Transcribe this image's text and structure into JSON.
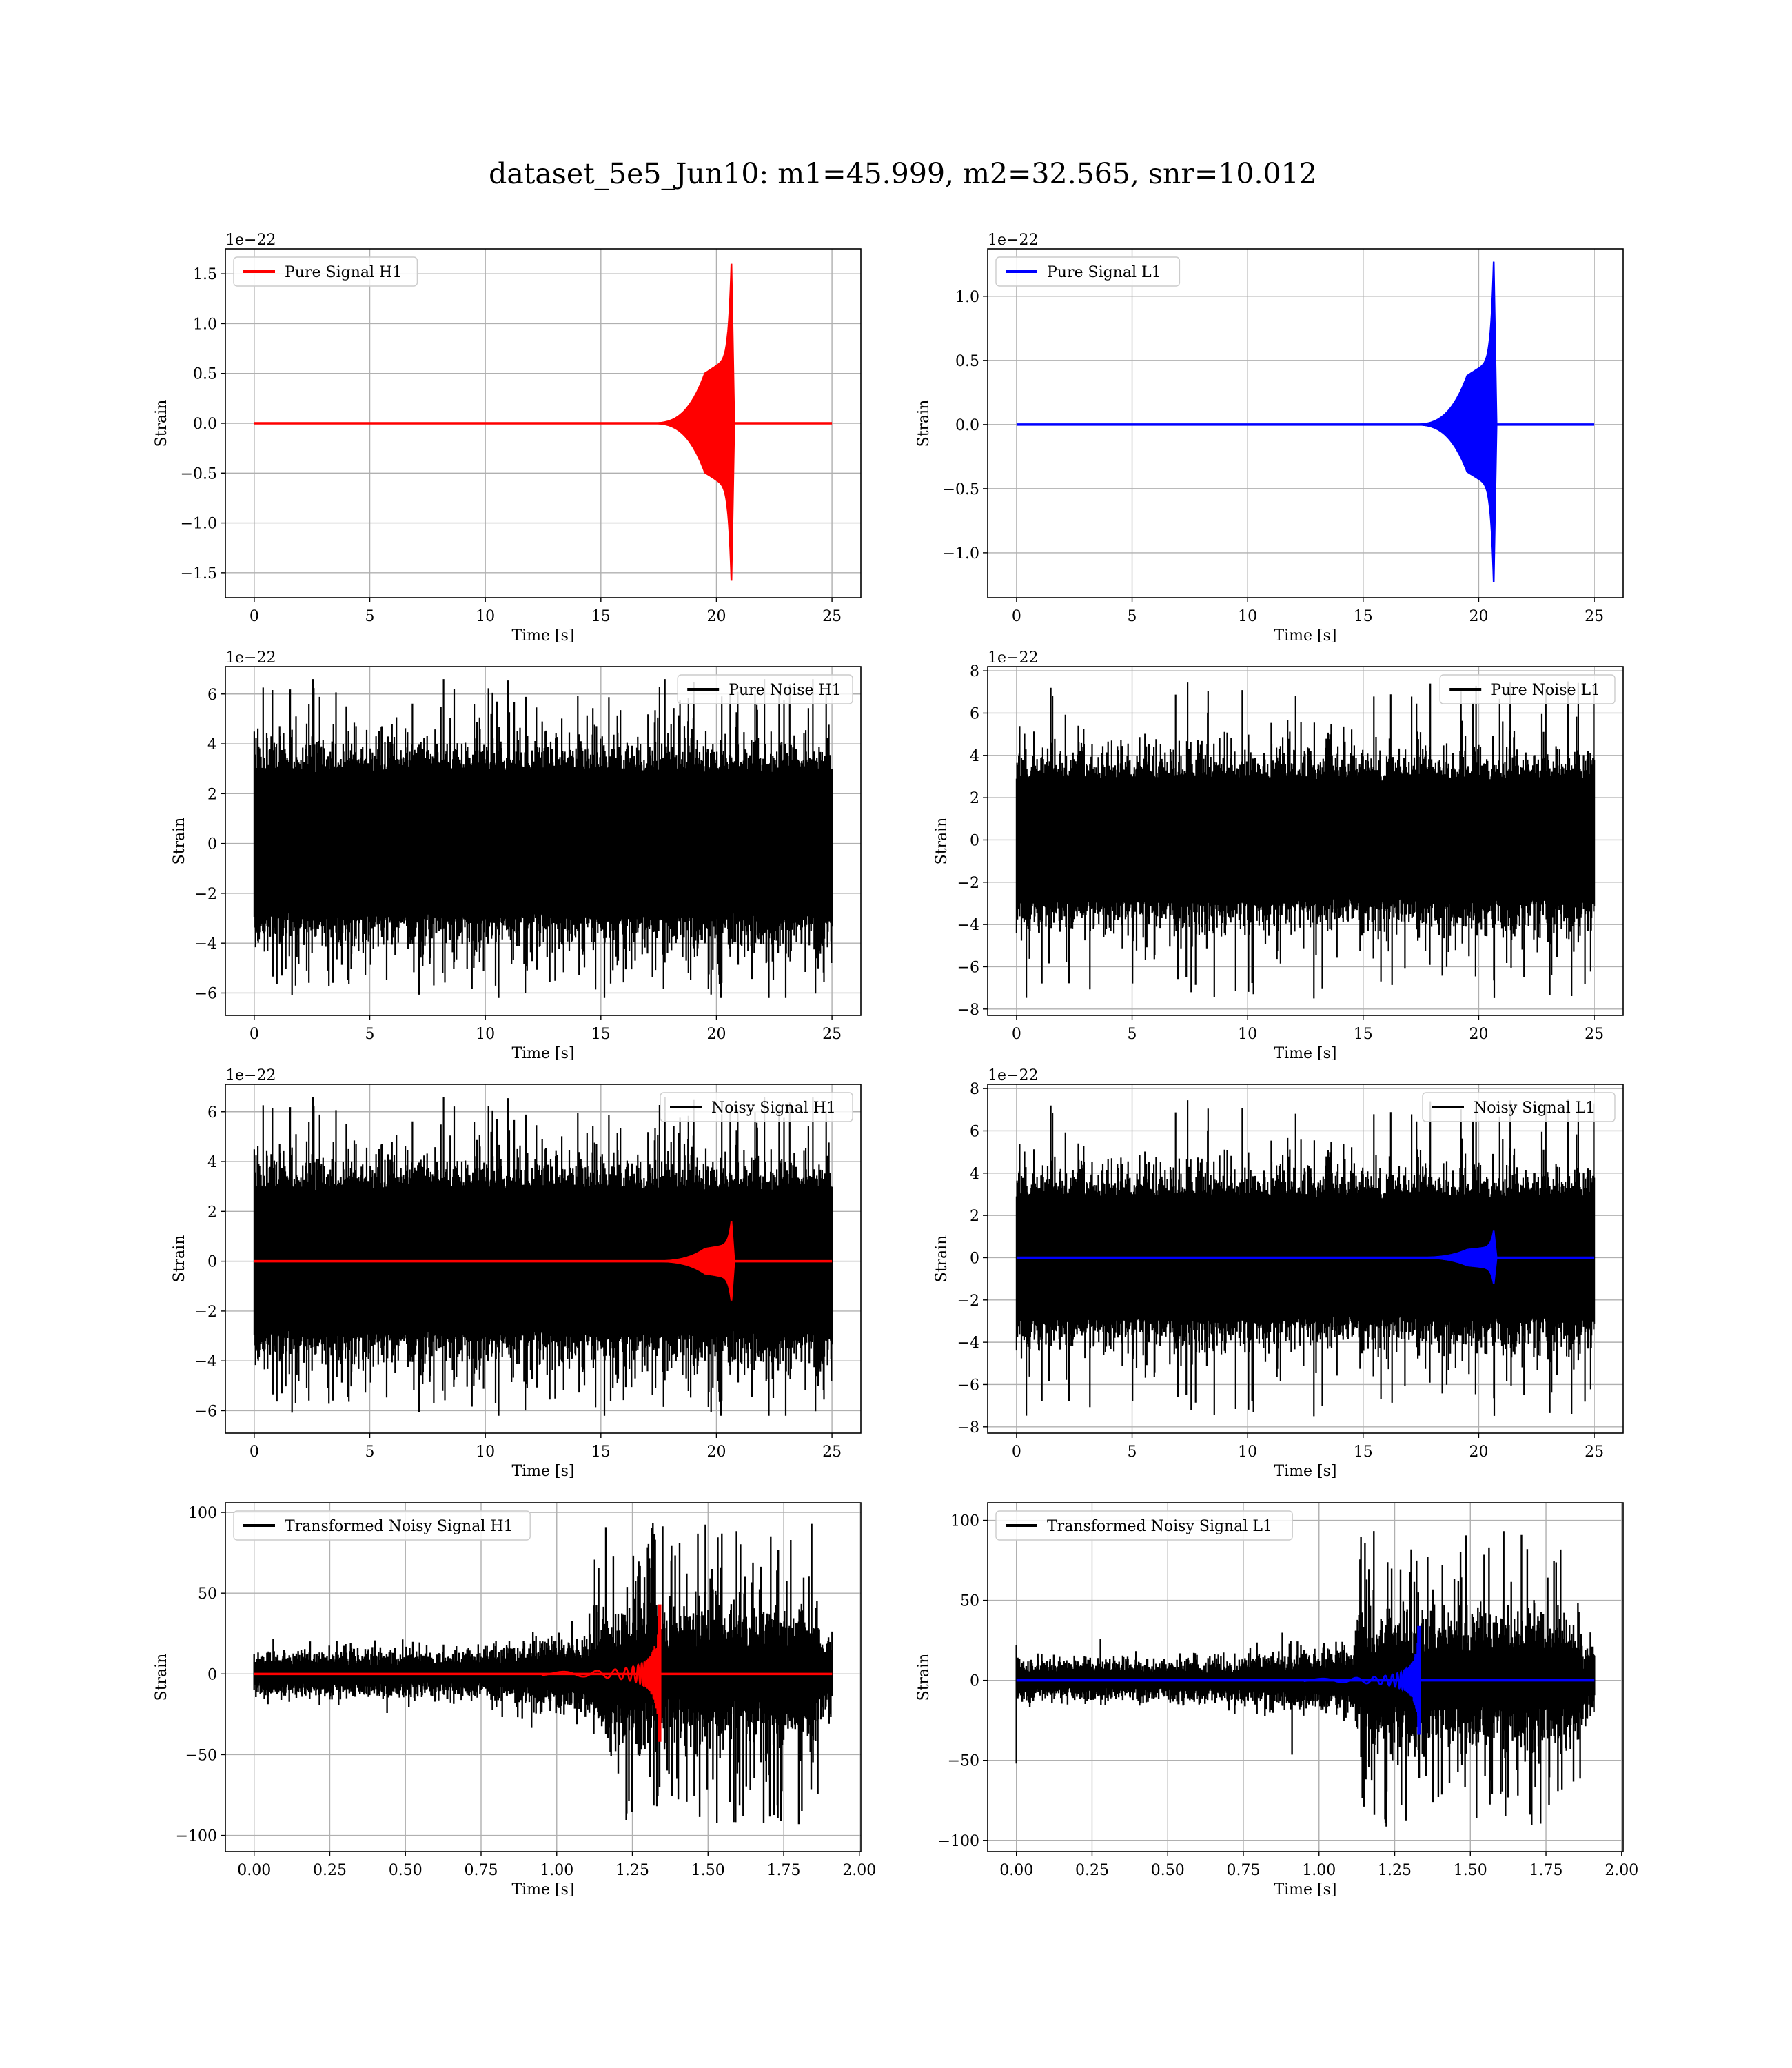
{
  "figure": {
    "title": "dataset_5e5_Jun10: m1=45.999, m2=32.565, snr=10.012"
  },
  "chart_data": [
    {
      "id": "ps-h1",
      "type": "line",
      "kind": "signal",
      "seed": 11,
      "legend": {
        "label": "Pure Signal H1",
        "position": "upper-left"
      },
      "xlabel": "Time [s]",
      "ylabel": "Strain",
      "offset_text": "1e−22",
      "xlim": [
        -1.25,
        26.25
      ],
      "ylim": [
        -1.75,
        1.75
      ],
      "xticks": [
        0,
        5,
        10,
        15,
        20,
        25
      ],
      "yticks": [
        -1.5,
        -1.0,
        -0.5,
        0.0,
        0.5,
        1.0,
        1.5
      ],
      "xtick_labels": [
        "0",
        "5",
        "10",
        "15",
        "20",
        "25"
      ],
      "ytick_labels": [
        "−1.5",
        "−1.0",
        "−0.5",
        "0.0",
        "0.5",
        "1.0",
        "1.5"
      ],
      "signal": {
        "color": "#ff0000",
        "x_range": [
          0,
          25
        ],
        "merger_time": 20.65,
        "peak": 1.6,
        "trough": -1.58,
        "plateau_start": 19.5,
        "plateau_amp": 0.5
      }
    },
    {
      "id": "ps-l1",
      "type": "line",
      "kind": "signal",
      "seed": 12,
      "legend": {
        "label": "Pure Signal L1",
        "position": "upper-left"
      },
      "xlabel": "Time [s]",
      "ylabel": "Strain",
      "offset_text": "1e−22",
      "xlim": [
        -1.25,
        26.25
      ],
      "ylim": [
        -1.35,
        1.37
      ],
      "xticks": [
        0,
        5,
        10,
        15,
        20,
        25
      ],
      "yticks": [
        -1.0,
        -0.5,
        0.0,
        0.5,
        1.0
      ],
      "xtick_labels": [
        "0",
        "5",
        "10",
        "15",
        "20",
        "25"
      ],
      "ytick_labels": [
        "−1.0",
        "−0.5",
        "0.0",
        "0.5",
        "1.0"
      ],
      "signal": {
        "color": "#0000ff",
        "x_range": [
          0,
          25
        ],
        "merger_time": 20.65,
        "peak": 1.27,
        "trough": -1.23,
        "plateau_start": 19.5,
        "plateau_amp": 0.38
      }
    },
    {
      "id": "pn-h1",
      "type": "line",
      "kind": "noise",
      "seed": 21,
      "legend": {
        "label": "Pure Noise H1",
        "position": "upper-right"
      },
      "xlabel": "Time [s]",
      "ylabel": "Strain",
      "offset_text": "1e−22",
      "xlim": [
        -1.25,
        26.25
      ],
      "ylim": [
        -6.9,
        7.1
      ],
      "xticks": [
        0,
        5,
        10,
        15,
        20,
        25
      ],
      "yticks": [
        -6,
        -4,
        -2,
        0,
        2,
        4,
        6
      ],
      "xtick_labels": [
        "0",
        "5",
        "10",
        "15",
        "20",
        "25"
      ],
      "ytick_labels": [
        "−6",
        "−4",
        "−2",
        "0",
        "2",
        "4",
        "6"
      ],
      "noise": {
        "color": "#000000",
        "x_range": [
          0,
          25
        ],
        "core": 2.9,
        "max": 6.6,
        "min": -6.2
      }
    },
    {
      "id": "pn-l1",
      "type": "line",
      "kind": "noise",
      "seed": 22,
      "legend": {
        "label": "Pure Noise L1",
        "position": "upper-right"
      },
      "xlabel": "Time [s]",
      "ylabel": "Strain",
      "offset_text": "1e−22",
      "xlim": [
        -1.25,
        26.25
      ],
      "ylim": [
        -8.3,
        8.2
      ],
      "xticks": [
        0,
        5,
        10,
        15,
        20,
        25
      ],
      "yticks": [
        -8,
        -6,
        -4,
        -2,
        0,
        2,
        4,
        6,
        8
      ],
      "xtick_labels": [
        "0",
        "5",
        "10",
        "15",
        "20",
        "25"
      ],
      "ytick_labels": [
        "−8",
        "−6",
        "−4",
        "−2",
        "0",
        "2",
        "4",
        "6",
        "8"
      ],
      "noise": {
        "color": "#000000",
        "x_range": [
          0,
          25
        ],
        "core": 2.9,
        "max": 7.5,
        "min": -7.5
      }
    },
    {
      "id": "ns-h1",
      "type": "line",
      "kind": "noise+signal",
      "seed": 21,
      "legend": {
        "label": "Noisy Signal H1",
        "position": "upper-right"
      },
      "xlabel": "Time [s]",
      "ylabel": "Strain",
      "offset_text": "1e−22",
      "xlim": [
        -1.25,
        26.25
      ],
      "ylim": [
        -6.9,
        7.1
      ],
      "xticks": [
        0,
        5,
        10,
        15,
        20,
        25
      ],
      "yticks": [
        -6,
        -4,
        -2,
        0,
        2,
        4,
        6
      ],
      "xtick_labels": [
        "0",
        "5",
        "10",
        "15",
        "20",
        "25"
      ],
      "ytick_labels": [
        "−6",
        "−4",
        "−2",
        "0",
        "2",
        "4",
        "6"
      ],
      "noise": {
        "color": "#000000",
        "x_range": [
          0,
          25
        ],
        "core": 2.9,
        "max": 6.6,
        "min": -6.2
      },
      "signal": {
        "color": "#ff0000",
        "x_range": [
          0,
          25
        ],
        "merger_time": 20.65,
        "peak": 1.6,
        "trough": -1.58,
        "plateau_start": 19.5,
        "plateau_amp": 0.5
      }
    },
    {
      "id": "ns-l1",
      "type": "line",
      "kind": "noise+signal",
      "seed": 22,
      "legend": {
        "label": "Noisy Signal L1",
        "position": "upper-right"
      },
      "xlabel": "Time [s]",
      "ylabel": "Strain",
      "offset_text": "1e−22",
      "xlim": [
        -1.25,
        26.25
      ],
      "ylim": [
        -8.3,
        8.2
      ],
      "xticks": [
        0,
        5,
        10,
        15,
        20,
        25
      ],
      "yticks": [
        -8,
        -6,
        -4,
        -2,
        0,
        2,
        4,
        6,
        8
      ],
      "xtick_labels": [
        "0",
        "5",
        "10",
        "15",
        "20",
        "25"
      ],
      "ytick_labels": [
        "−8",
        "−6",
        "−4",
        "−2",
        "0",
        "2",
        "4",
        "6",
        "8"
      ],
      "noise": {
        "color": "#000000",
        "x_range": [
          0,
          25
        ],
        "core": 2.9,
        "max": 7.5,
        "min": -7.5
      },
      "signal": {
        "color": "#0000ff",
        "x_range": [
          0,
          25
        ],
        "merger_time": 20.65,
        "peak": 1.27,
        "trough": -1.23,
        "plateau_start": 19.5,
        "plateau_amp": 0.38
      }
    },
    {
      "id": "tn-h1",
      "type": "line",
      "kind": "transformed",
      "seed": 31,
      "legend": {
        "label": "Transformed Noisy Signal H1",
        "position": "upper-left"
      },
      "xlabel": "Time [s]",
      "ylabel": "Strain",
      "offset_text": "",
      "xlim": [
        -0.095,
        2.005
      ],
      "ylim": [
        -110,
        106
      ],
      "xticks": [
        0.0,
        0.25,
        0.5,
        0.75,
        1.0,
        1.25,
        1.5,
        1.75,
        2.0
      ],
      "yticks": [
        -100,
        -50,
        0,
        50,
        100
      ],
      "xtick_labels": [
        "0.00",
        "0.25",
        "0.50",
        "0.75",
        "1.00",
        "1.25",
        "1.50",
        "1.75",
        "2.00"
      ],
      "ytick_labels": [
        "−100",
        "−50",
        "0",
        "50",
        "100"
      ],
      "noise": {
        "color": "#000000",
        "x_range": [
          0,
          1.91
        ],
        "quiet_amp": 9,
        "rise_start": 0.6,
        "loud_start": 1.12,
        "loud_end": 1.87,
        "loud_amp": 55,
        "max": 104,
        "min": -108
      },
      "signal": {
        "color": "#ff0000",
        "x_range": [
          0,
          1.91
        ],
        "chirp_start": 0.95,
        "merger_time": 1.34,
        "peak": 43,
        "trough": -42
      }
    },
    {
      "id": "tn-l1",
      "type": "line",
      "kind": "transformed",
      "seed": 32,
      "legend": {
        "label": "Transformed Noisy Signal L1",
        "position": "upper-left"
      },
      "xlabel": "Time [s]",
      "ylabel": "Strain",
      "offset_text": "",
      "xlim": [
        -0.095,
        2.005
      ],
      "ylim": [
        -107,
        111
      ],
      "xticks": [
        0.0,
        0.25,
        0.5,
        0.75,
        1.0,
        1.25,
        1.5,
        1.75,
        2.0
      ],
      "yticks": [
        -100,
        -50,
        0,
        50,
        100
      ],
      "xtick_labels": [
        "0.00",
        "0.25",
        "0.50",
        "0.75",
        "1.00",
        "1.25",
        "1.50",
        "1.75",
        "2.00"
      ],
      "ytick_labels": [
        "−100",
        "−50",
        "0",
        "50",
        "100"
      ],
      "noise": {
        "color": "#000000",
        "x_range": [
          0,
          1.91
        ],
        "quiet_amp": 8,
        "rise_start": 0.6,
        "loud_start": 1.12,
        "loud_end": 1.87,
        "loud_amp": 55,
        "max": 107,
        "min": -102,
        "spike_start": 22,
        "spike_start_low": -52
      },
      "signal": {
        "color": "#0000ff",
        "x_range": [
          0,
          1.91
        ],
        "chirp_start": 0.95,
        "merger_time": 1.33,
        "peak": 34,
        "trough": -34
      }
    }
  ]
}
